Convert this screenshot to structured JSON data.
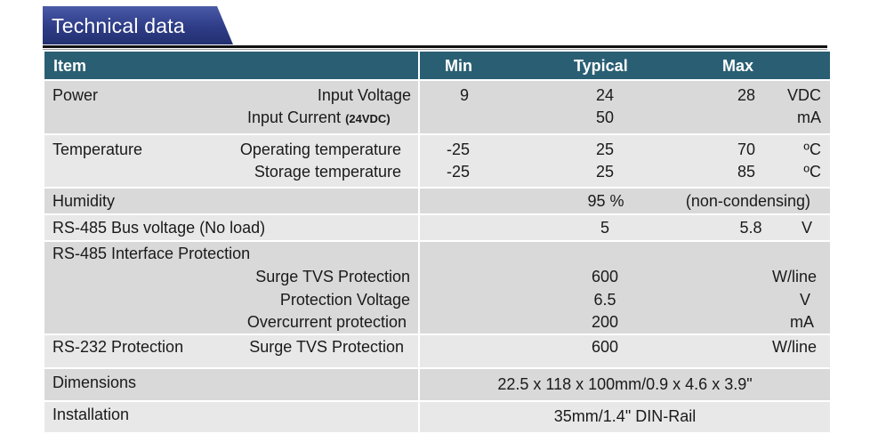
{
  "title": "Technical data",
  "header": {
    "item": "Item",
    "min": "Min",
    "typical": "Typical",
    "max": "Max"
  },
  "power": {
    "label": "Power",
    "input_voltage": "Input   Voltage",
    "iv_min": "9",
    "iv_typ": "24",
    "iv_max": "28",
    "iv_unit": "VDC",
    "input_current": "Input Current",
    "ic_note": "(24VDC)",
    "ic_typ": "50",
    "ic_unit": "mA"
  },
  "temperature": {
    "label": "Temperature",
    "operating": "Operating temperature",
    "op_min": "-25",
    "op_typ": "25",
    "op_max": "70",
    "op_unit": "ºC",
    "storage": "Storage temperature",
    "st_min": "-25",
    "st_typ": "25",
    "st_max": "85",
    "st_unit": "ºC"
  },
  "humidity": {
    "label": "Humidity",
    "typ": "95 %",
    "note": "(non-condensing)"
  },
  "rs485_bus": {
    "label": "RS-485 Bus voltage (No load)",
    "typ": "5",
    "max": "5.8",
    "unit": "V"
  },
  "rs485_protection": {
    "label": "RS-485 Interface Protection",
    "surge": "Surge TVS Protection",
    "surge_typ": "600",
    "surge_unit": "W/line",
    "pv": "Protection Voltage",
    "pv_typ": "6.5",
    "pv_unit": "V",
    "oc": "Overcurrent protection",
    "oc_typ": "200",
    "oc_unit": "mA"
  },
  "rs232_protection": {
    "label": "RS-232 Protection",
    "surge": "Surge TVS Protection",
    "surge_typ": "600",
    "surge_unit": "W/line"
  },
  "dimensions": {
    "label": "Dimensions",
    "value": "22.5 x 118 x 100mm/0.9 x 4.6 x 3.9\""
  },
  "installation": {
    "label": "Installation",
    "value": "35mm/1.4\" DIN-Rail"
  }
}
